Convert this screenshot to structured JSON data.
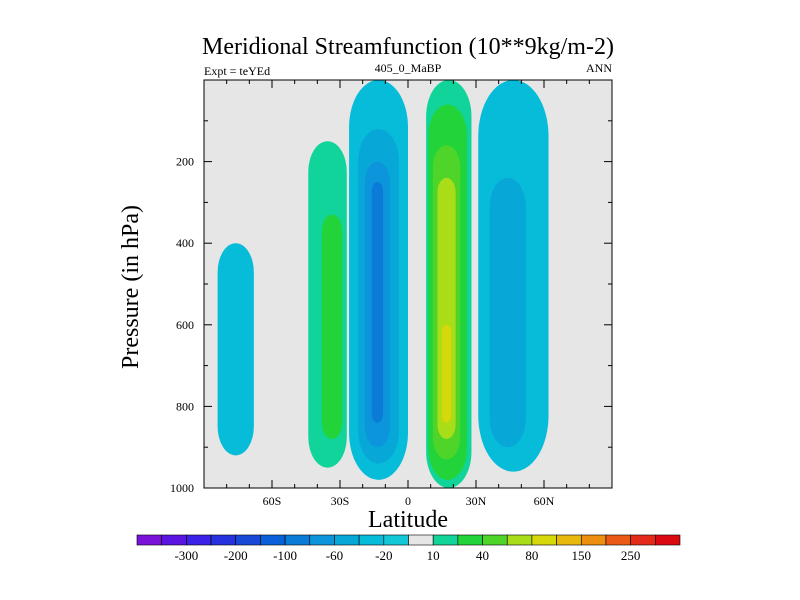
{
  "chart_data": {
    "type": "heatmap",
    "title": "Meridional Streamfunction (10**9kg/m-2)",
    "left_string": "Expt = teYEd",
    "center_string": "405_0_MaBP",
    "right_string": "ANN",
    "xlabel": "Latitude",
    "ylabel": "Pressure (in hPa)",
    "xlim": [
      -90,
      90
    ],
    "ylim": [
      1000,
      0
    ],
    "x_ticks": [
      {
        "value": -60,
        "label": "60S"
      },
      {
        "value": -30,
        "label": "30S"
      },
      {
        "value": 0,
        "label": "0"
      },
      {
        "value": 30,
        "label": "30N"
      },
      {
        "value": 60,
        "label": "60N"
      }
    ],
    "y_ticks": [
      {
        "value": 200,
        "label": "200"
      },
      {
        "value": 400,
        "label": "400"
      },
      {
        "value": 600,
        "label": "600"
      },
      {
        "value": 800,
        "label": "800"
      },
      {
        "value": 1000,
        "label": "1000"
      }
    ],
    "levels": [
      -350,
      -300,
      -250,
      -200,
      -150,
      -100,
      -80,
      -60,
      -40,
      -20,
      -10,
      10,
      20,
      40,
      60,
      80,
      100,
      150,
      200,
      250,
      300
    ],
    "colorbar_labels": [
      "-300",
      "-200",
      "-100",
      "-60",
      "-20",
      "10",
      "40",
      "80",
      "150",
      "250"
    ],
    "colors": [
      "#7a12d9",
      "#5a16e0",
      "#3b22e6",
      "#2632dd",
      "#1848d6",
      "#0a60d8",
      "#0b7bd8",
      "#0c95da",
      "#07a8d8",
      "#06bcd9",
      "#12c8d8",
      "#e6e6e6",
      "#10d49a",
      "#22d43a",
      "#4fd42a",
      "#a9dd18",
      "#d6d80a",
      "#e8b80c",
      "#ec8e10",
      "#ea5a14",
      "#e42a18",
      "#d90a10"
    ],
    "background_color": "#e6e6e6",
    "cells": [
      {
        "name": "far-south-cell",
        "value": -15,
        "lat": [
          -84,
          -68
        ],
        "p": [
          400,
          920
        ],
        "color": "#06bcd9"
      },
      {
        "name": "southern-positive-cell",
        "value": 15,
        "lat": [
          -44,
          -27
        ],
        "p": [
          150,
          950
        ],
        "color": "#10d49a"
      },
      {
        "name": "southern-positive-core",
        "value": 30,
        "lat": [
          -38,
          -29
        ],
        "p": [
          330,
          880
        ],
        "color": "#22d43a"
      },
      {
        "name": "southern-negative-cell",
        "value": -15,
        "lat": [
          -26,
          0
        ],
        "p": [
          0,
          980
        ],
        "color": "#06bcd9"
      },
      {
        "name": "southern-negative-band2",
        "value": -30,
        "lat": [
          -22,
          -4
        ],
        "p": [
          120,
          940
        ],
        "color": "#07a8d8"
      },
      {
        "name": "southern-negative-band3",
        "value": -50,
        "lat": [
          -19,
          -8
        ],
        "p": [
          200,
          900
        ],
        "color": "#0c95da"
      },
      {
        "name": "southern-negative-core",
        "value": -70,
        "lat": [
          -16,
          -11
        ],
        "p": [
          250,
          840
        ],
        "color": "#0b7bd8"
      },
      {
        "name": "northern-positive-cell",
        "value": 15,
        "lat": [
          8,
          28
        ],
        "p": [
          0,
          1000
        ],
        "color": "#10d49a"
      },
      {
        "name": "northern-positive-band2",
        "value": 30,
        "lat": [
          9,
          26
        ],
        "p": [
          60,
          980
        ],
        "color": "#22d43a"
      },
      {
        "name": "northern-positive-band3",
        "value": 50,
        "lat": [
          11,
          23
        ],
        "p": [
          160,
          930
        ],
        "color": "#4fd42a"
      },
      {
        "name": "northern-positive-band4",
        "value": 70,
        "lat": [
          13,
          21
        ],
        "p": [
          240,
          880
        ],
        "color": "#a9dd18"
      },
      {
        "name": "northern-positive-core",
        "value": 90,
        "lat": [
          15,
          19
        ],
        "p": [
          600,
          840
        ],
        "color": "#d6d80a"
      },
      {
        "name": "northern-negative-cell",
        "value": -15,
        "lat": [
          31,
          62
        ],
        "p": [
          0,
          960
        ],
        "color": "#06bcd9"
      },
      {
        "name": "northern-negative-core",
        "value": -30,
        "lat": [
          36,
          52
        ],
        "p": [
          240,
          900
        ],
        "color": "#07a8d8"
      }
    ]
  }
}
